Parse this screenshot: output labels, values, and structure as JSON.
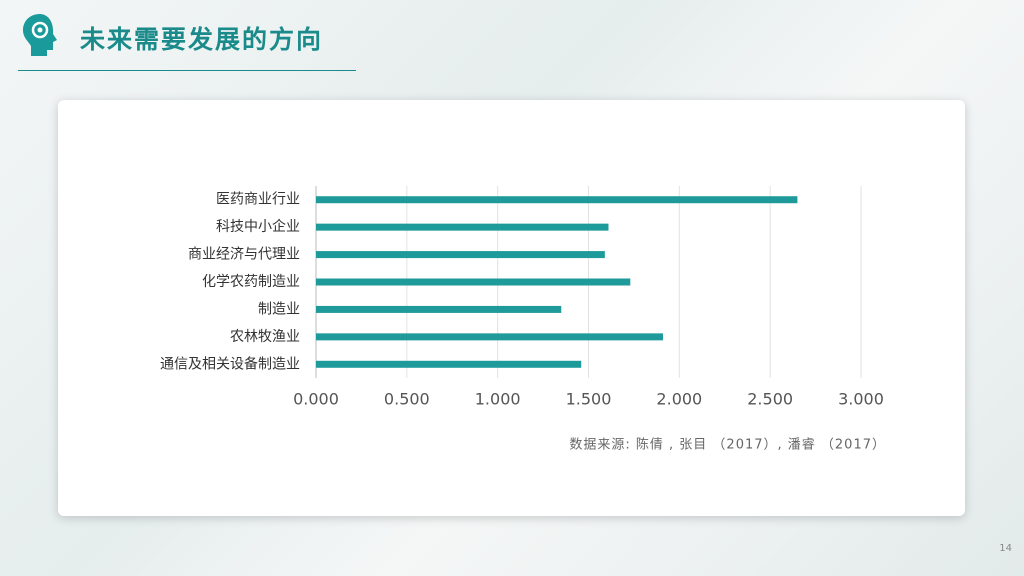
{
  "header": {
    "title": "未来需要发展的方向"
  },
  "chart_data": {
    "type": "bar",
    "orientation": "horizontal",
    "categories": [
      "医药商业行业",
      "科技中小企业",
      "商业经济与代理业",
      "化学农药制造业",
      "制造业",
      "农林牧渔业",
      "通信及相关设备制造业"
    ],
    "values": [
      2.65,
      1.61,
      1.59,
      1.73,
      1.35,
      1.91,
      1.46
    ],
    "color": "#1f9a9a",
    "xlim": [
      0,
      3
    ],
    "xticks": [
      {
        "value": 0,
        "label": "0.000"
      },
      {
        "value": 0.5,
        "label": "0.500"
      },
      {
        "value": 1,
        "label": "1.000"
      },
      {
        "value": 1.5,
        "label": "1.500"
      },
      {
        "value": 2,
        "label": "2.000"
      },
      {
        "value": 2.5,
        "label": "2.500"
      },
      {
        "value": 3,
        "label": "3.000"
      }
    ],
    "grid": true,
    "source": "数据来源:  陈倩 , 张目 （2017）, 潘睿 （2017）"
  },
  "page_number": "14"
}
